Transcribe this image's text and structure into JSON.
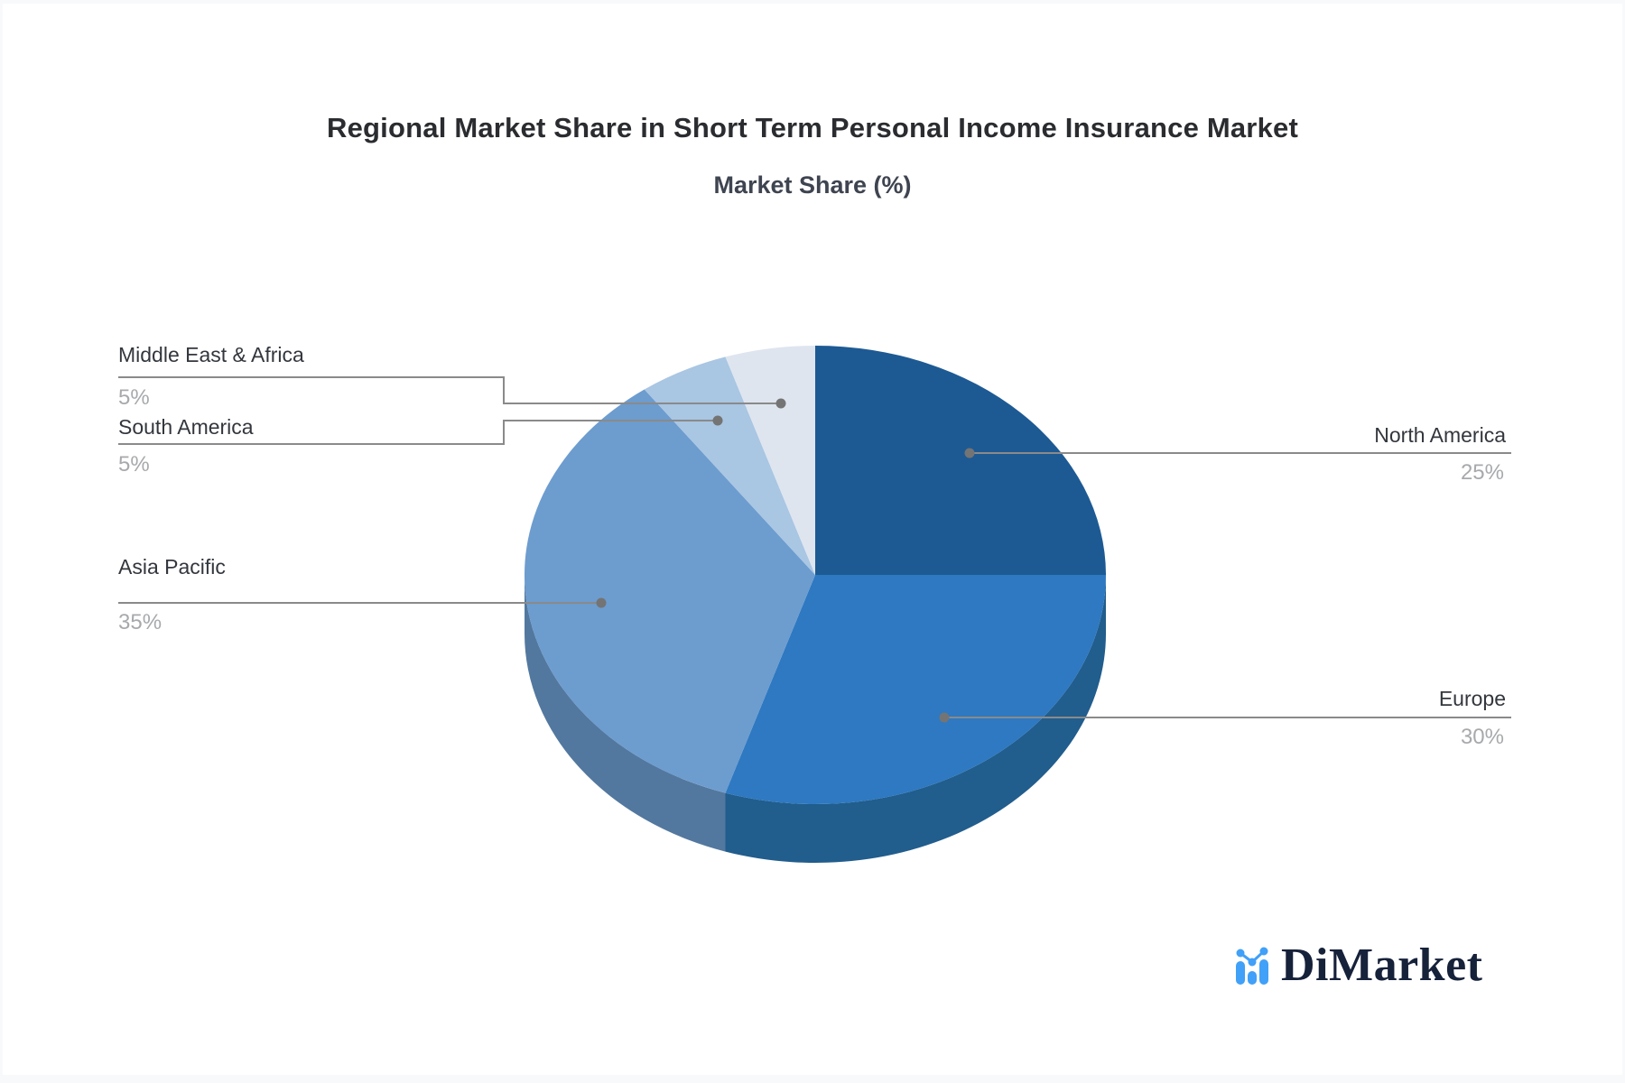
{
  "header": {
    "title": "Regional Market Share in Short Term Personal Income Insurance Market",
    "subtitle": "Market Share (%)"
  },
  "chart_data": {
    "type": "pie",
    "style": "3d",
    "title": "Regional Market Share in Short Term Personal Income Insurance Market",
    "subtitle": "Market Share (%)",
    "unit": "%",
    "start_angle_deg": 0,
    "direction": "clockwise",
    "legend_position": "none",
    "categories": [
      "North America",
      "Europe",
      "Asia Pacific",
      "South America",
      "Middle East & Africa"
    ],
    "values": [
      25,
      30,
      35,
      5,
      5
    ],
    "colors": [
      "#1D5A94",
      "#2E79C1",
      "#6D9CCF",
      "#A9C6E3",
      "#DEE5EF"
    ],
    "side_colors": [
      "#174A7C",
      "#215D8D",
      "#53789F",
      "#8FB0D1",
      "#C3D0DF"
    ]
  },
  "labels": {
    "middle_east_africa": {
      "name": "Middle East & Africa",
      "value": "5%"
    },
    "south_america": {
      "name": "South America",
      "value": "5%"
    },
    "asia_pacific": {
      "name": "Asia Pacific",
      "value": "35%"
    },
    "north_america": {
      "name": "North America",
      "value": "25%"
    },
    "europe": {
      "name": "Europe",
      "value": "30%"
    }
  },
  "branding": {
    "logo_text": "DiMarket",
    "logo_icon": "bar-line-chart-icon"
  },
  "colors": {
    "title_text": "#2A2C30",
    "subtitle_text": "#3E4450",
    "label_text": "#33373D",
    "percent_text": "#A7A9AC",
    "leader_line": "#8A8A8A",
    "dot": "#747474",
    "logo_text": "#16213A",
    "logo_icon": "#41A0F8",
    "background": "#FFFFFF",
    "frame": "#F7F9FB"
  }
}
